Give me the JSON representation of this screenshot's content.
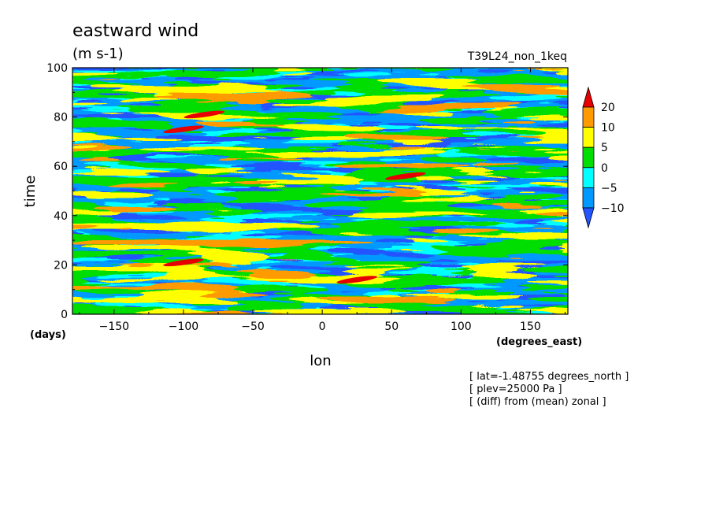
{
  "chart_data": {
    "type": "heatmap",
    "title": "eastward wind",
    "units": "(m s-1)",
    "run_label": "T39L24_non_1keq",
    "xlabel": "lon",
    "x_unit_label": "(degrees_east)",
    "ylabel": "time",
    "y_unit_label": "(days)",
    "xlim": [
      -180,
      177
    ],
    "ylim": [
      0,
      100
    ],
    "x_ticks": [
      -150,
      -100,
      -50,
      0,
      50,
      100,
      150
    ],
    "y_ticks": [
      0,
      20,
      40,
      60,
      80,
      100
    ],
    "color_levels": [
      -10,
      -5,
      0,
      5,
      10,
      20
    ],
    "colorbar": {
      "tick_labels": [
        "20",
        "10",
        "5",
        "0",
        "-5",
        "-10"
      ],
      "colors": [
        "#e60000",
        "#ff9a00",
        "#ffff00",
        "#00dd00",
        "#00ffff",
        "#0099ff",
        "#2255ff"
      ],
      "extend": "both"
    },
    "notes": [
      "[ lat=-1.48755 degrees_north ]",
      "[ plev=25000 Pa ]",
      "[ (diff) from (mean) zonal ]"
    ],
    "streaks": [
      {
        "x": -100,
        "y": 21,
        "value": 22
      },
      {
        "x": 25,
        "y": 14,
        "value": 22
      },
      {
        "x": 60,
        "y": 56,
        "value": 22
      },
      {
        "x": -100,
        "y": 75,
        "value": 21
      },
      {
        "x": -85,
        "y": 81,
        "value": 20
      }
    ]
  }
}
